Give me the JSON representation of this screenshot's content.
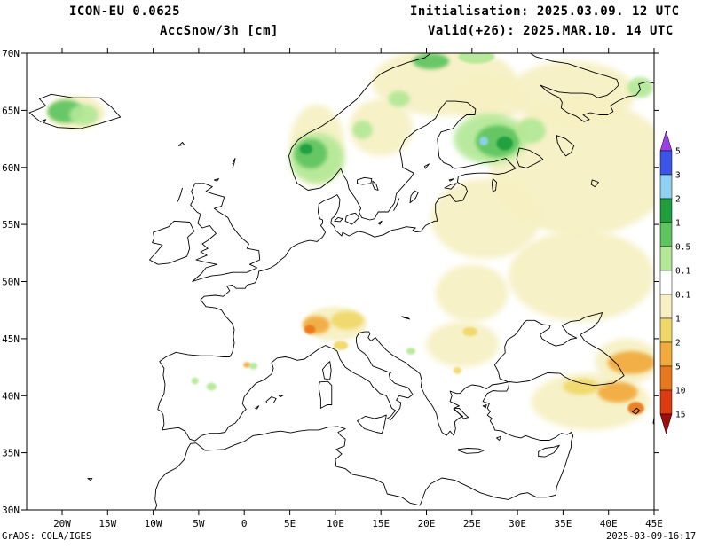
{
  "header": {
    "model": "ICON-EU 0.0625",
    "product": "AccSnow/3h [cm]",
    "initialisation": "Initialisation: 2025.03.09. 12 UTC",
    "valid": "Valid(+26): 2025.MAR.10. 14 UTC"
  },
  "footer": {
    "credit": "GrADS: COLA/IGES",
    "timestamp": "2025-03-09-16:17"
  },
  "axes": {
    "lat_labels": [
      "70N",
      "65N",
      "60N",
      "55N",
      "50N",
      "45N",
      "40N",
      "35N",
      "30N"
    ],
    "lon_labels": [
      "20W",
      "15W",
      "10W",
      "5W",
      "0",
      "5E",
      "10E",
      "15E",
      "20E",
      "25E",
      "30E",
      "35E",
      "40E",
      "45E"
    ]
  },
  "colorbar": {
    "tick_labels": [
      "5",
      "3",
      "2",
      "1",
      "0.5",
      "0.1",
      "0.1",
      "1",
      "2",
      "5",
      "10",
      "15"
    ],
    "colors_top_to_bottom": [
      "#9b40e8",
      "#3a55e8",
      "#8fd1f2",
      "#1f9e3c",
      "#5ec45e",
      "#b3e896",
      "#ffffff",
      "#f6f0c2",
      "#f0d868",
      "#f2aa3c",
      "#e8781e",
      "#dd3a10",
      "#9e0e0e"
    ]
  },
  "chart_data": {
    "type": "heatmap",
    "title": "AccSnow/3h [cm]",
    "units": "cm",
    "lon_range": [
      -23.9,
      45.0
    ],
    "lat_range": [
      30,
      70
    ],
    "legend_position": "right",
    "scale": {
      "value_thresholds": [
        5,
        3,
        2,
        1,
        0.5,
        0.1,
        -0.1,
        -1,
        -2,
        -5,
        -10,
        -15
      ],
      "colors": [
        "#9b40e8",
        "#3a55e8",
        "#8fd1f2",
        "#1f9e3c",
        "#5ec45e",
        "#b3e896",
        "#ffffff",
        "#f6f0c2",
        "#f0d868",
        "#f2aa3c",
        "#e8781e",
        "#dd3a10",
        "#9e0e0e"
      ]
    },
    "regions": [
      {
        "name": "nw-russia-wash",
        "lon": 37,
        "lat": 60,
        "rlon": 10,
        "rlat": 6,
        "value": -0.3
      },
      {
        "name": "baltics-wash",
        "lon": 26.5,
        "lat": 55.5,
        "rlon": 6,
        "rlat": 3.5,
        "value": -0.3
      },
      {
        "name": "north-scandinavia-wash",
        "lon": 22,
        "lat": 67.5,
        "rlon": 8,
        "rlat": 3,
        "value": -0.3
      },
      {
        "name": "kola-wash",
        "lon": 36,
        "lat": 66.5,
        "rlon": 7,
        "rlat": 2.8,
        "value": -0.3
      },
      {
        "name": "norway-wash",
        "lon": 8,
        "lat": 62,
        "rlon": 3,
        "rlat": 3.5,
        "value": -0.3
      },
      {
        "name": "sweden-wash",
        "lon": 15,
        "lat": 63.5,
        "rlon": 3.5,
        "rlat": 2.5,
        "value": -0.3
      },
      {
        "name": "south-russia-wash",
        "lon": 37,
        "lat": 50.5,
        "rlon": 8,
        "rlat": 4,
        "value": -0.3
      },
      {
        "name": "carpathian-wash",
        "lon": 25,
        "lat": 49,
        "rlon": 4,
        "rlat": 2.5,
        "value": -0.3
      },
      {
        "name": "balkan-wash",
        "lon": 24,
        "lat": 44.5,
        "rlon": 4,
        "rlat": 2,
        "value": -0.3
      },
      {
        "name": "anatolia-wash",
        "lon": 38,
        "lat": 39.5,
        "rlon": 6.5,
        "rlat": 2.5,
        "value": -0.3
      },
      {
        "name": "alps-wash",
        "lon": 10,
        "lat": 46.3,
        "rlon": 3.5,
        "rlat": 1.5,
        "value": -0.3
      },
      {
        "name": "iceland-wash",
        "lon": -18.5,
        "lat": 64.8,
        "rlon": 3.2,
        "rlat": 1.5,
        "value": -0.3
      },
      {
        "name": "caucasus-wash",
        "lon": 42,
        "lat": 43,
        "rlon": 3.5,
        "rlat": 2,
        "value": -0.3
      },
      {
        "name": "finland-north-wash",
        "lon": 27,
        "lat": 66,
        "rlon": 4,
        "rlat": 2,
        "value": -0.3
      },
      {
        "name": "pontic-yellow",
        "lon": 37,
        "lat": 40.8,
        "rlon": 2,
        "rlat": 0.7,
        "value": -1.5
      },
      {
        "name": "alps-yellow",
        "lon": 11.3,
        "lat": 46.6,
        "rlon": 1.8,
        "rlat": 0.8,
        "value": -1.5
      },
      {
        "name": "alps-orange",
        "lon": 7.9,
        "lat": 46.2,
        "rlon": 1.5,
        "rlat": 0.8,
        "value": -3
      },
      {
        "name": "alps-dark-orange",
        "lon": 7.2,
        "lat": 45.8,
        "rlon": 0.6,
        "rlat": 0.4,
        "value": -7
      },
      {
        "name": "apennines-yellow",
        "lon": 10.6,
        "lat": 44.4,
        "rlon": 0.8,
        "rlat": 0.4,
        "value": -1.5
      },
      {
        "name": "carpathians-yellow",
        "lon": 24.8,
        "lat": 45.6,
        "rlon": 0.8,
        "rlat": 0.4,
        "value": -1.5
      },
      {
        "name": "pyrenees-orange",
        "lon": 0.3,
        "lat": 42.7,
        "rlon": 0.4,
        "rlat": 0.25,
        "value": -3
      },
      {
        "name": "rila-yellow",
        "lon": 23.4,
        "lat": 42.2,
        "rlon": 0.45,
        "rlat": 0.3,
        "value": -1.5
      },
      {
        "name": "caucasus-orange",
        "lon": 42.5,
        "lat": 42.9,
        "rlon": 2.6,
        "rlat": 1,
        "value": -3
      },
      {
        "name": "ne-turkey-orange",
        "lon": 41,
        "lat": 40.3,
        "rlon": 2.2,
        "rlat": 0.9,
        "value": -3
      },
      {
        "name": "e-turkey-dark-orange",
        "lon": 43,
        "lat": 38.9,
        "rlon": 0.9,
        "rlat": 0.55,
        "value": -7
      },
      {
        "name": "south-norway-light-green",
        "lon": 8,
        "lat": 60.8,
        "rlon": 3,
        "rlat": 2.2,
        "value": 0.3
      },
      {
        "name": "south-norway-green",
        "lon": 7.3,
        "lat": 61.2,
        "rlon": 1.8,
        "rlat": 1.3,
        "value": 0.7
      },
      {
        "name": "south-norway-dark-green",
        "lon": 6.8,
        "lat": 61.6,
        "rlon": 0.7,
        "rlat": 0.45,
        "value": 1.5
      },
      {
        "name": "scandes-mid-green",
        "lon": 13,
        "lat": 63.3,
        "rlon": 1.1,
        "rlat": 0.8,
        "value": 0.3
      },
      {
        "name": "scandes-north-green",
        "lon": 17,
        "lat": 66,
        "rlon": 1.2,
        "rlat": 0.7,
        "value": 0.3
      },
      {
        "name": "tromso-green",
        "lon": 20.5,
        "lat": 69.3,
        "rlon": 2,
        "rlat": 0.7,
        "value": 0.7
      },
      {
        "name": "finnmark-green",
        "lon": 25.5,
        "lat": 69.7,
        "rlon": 2,
        "rlat": 0.6,
        "value": 0.3
      },
      {
        "name": "finland-light-green",
        "lon": 27,
        "lat": 62.5,
        "rlon": 4,
        "rlat": 2.2,
        "value": 0.3
      },
      {
        "name": "finland-green",
        "lon": 27.8,
        "lat": 62.3,
        "rlon": 2.4,
        "rlat": 1.4,
        "value": 0.7
      },
      {
        "name": "finland-dark-green",
        "lon": 28.6,
        "lat": 62.1,
        "rlon": 0.9,
        "rlat": 0.6,
        "value": 1.5
      },
      {
        "name": "finland-blue",
        "lon": 26.3,
        "lat": 62.3,
        "rlon": 0.5,
        "rlat": 0.4,
        "value": 2.5
      },
      {
        "name": "karelia-green",
        "lon": 31.5,
        "lat": 63.2,
        "rlon": 1.6,
        "rlat": 1.1,
        "value": 0.3
      },
      {
        "name": "iceland-green",
        "lon": -19.6,
        "lat": 64.9,
        "rlon": 2,
        "rlat": 1,
        "value": 0.7
      },
      {
        "name": "iceland-light-green",
        "lon": -17.6,
        "lat": 64.6,
        "rlon": 1.6,
        "rlat": 0.9,
        "value": 0.3
      },
      {
        "name": "spain-green-1",
        "lon": -3.6,
        "lat": 40.8,
        "rlon": 0.55,
        "rlat": 0.35,
        "value": 0.3
      },
      {
        "name": "spain-green-2",
        "lon": -5.4,
        "lat": 41.3,
        "rlon": 0.4,
        "rlat": 0.3,
        "value": 0.3
      },
      {
        "name": "pyrenees-green",
        "lon": 1,
        "lat": 42.6,
        "rlon": 0.45,
        "rlat": 0.3,
        "value": 0.3
      },
      {
        "name": "bosnia-green",
        "lon": 18.3,
        "lat": 43.9,
        "rlon": 0.5,
        "rlat": 0.3,
        "value": 0.3
      },
      {
        "name": "pechora-green",
        "lon": 43.5,
        "lat": 67,
        "rlon": 1.4,
        "rlat": 0.9,
        "value": 0.3
      }
    ]
  }
}
